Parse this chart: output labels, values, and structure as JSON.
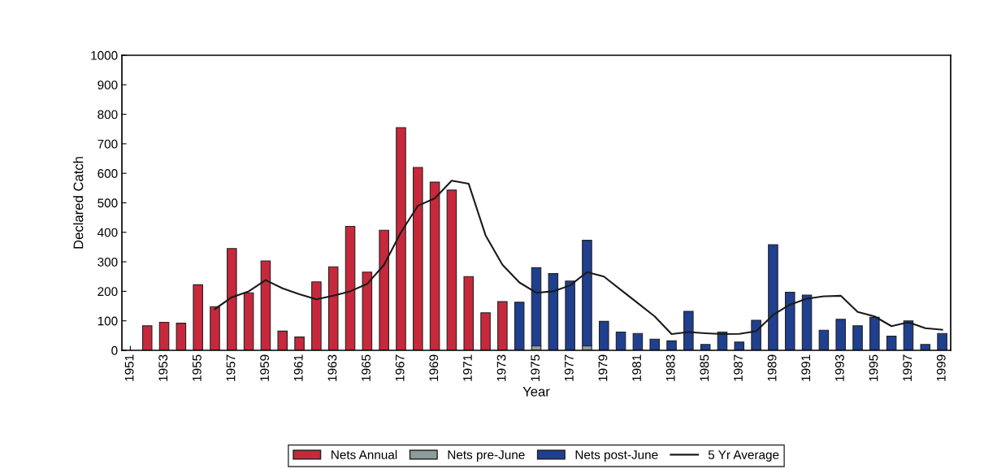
{
  "chart_data": {
    "type": "bar",
    "stacked": true,
    "xlabel": "Year",
    "ylabel": "Declared Catch",
    "categories": [
      "1951",
      null,
      "1953",
      null,
      "1955",
      null,
      "1957",
      null,
      "1959",
      null,
      "1961",
      null,
      "1963",
      null,
      "1965",
      null,
      "1967",
      null,
      "1969",
      null,
      "1971",
      null,
      "1973",
      null,
      "1975",
      null,
      "1977",
      null,
      "1979",
      null,
      "1981",
      null,
      "1983",
      null,
      "1985",
      null,
      "1987",
      null,
      "1989",
      null,
      "1991",
      null,
      "1993",
      null,
      "1995",
      null,
      "1997",
      null,
      "1999"
    ],
    "series": [
      {
        "name": "Nets Annual",
        "color": "#c8283c",
        "values": [
          null,
          83,
          95,
          92,
          222,
          148,
          345,
          195,
          303,
          65,
          45,
          232,
          283,
          420,
          265,
          407,
          755,
          620,
          570,
          543,
          250,
          127,
          165,
          null,
          null,
          null,
          null,
          null,
          null,
          null,
          null,
          null,
          null,
          null,
          null,
          null,
          null,
          null,
          null,
          null,
          null,
          null,
          null,
          null,
          null,
          null,
          null,
          null,
          null
        ]
      },
      {
        "name": "Nets pre-June",
        "color": "#8c9c9c",
        "values": [
          null,
          null,
          null,
          null,
          null,
          null,
          null,
          null,
          null,
          null,
          null,
          null,
          null,
          null,
          null,
          null,
          null,
          null,
          null,
          null,
          null,
          null,
          null,
          null,
          15,
          null,
          null,
          15,
          null,
          null,
          null,
          null,
          null,
          null,
          null,
          null,
          null,
          null,
          null,
          null,
          null,
          null,
          null,
          null,
          null,
          null,
          null,
          null,
          null
        ]
      },
      {
        "name": "Nets post-June",
        "color": "#1f3f8f",
        "values": [
          null,
          null,
          null,
          null,
          null,
          null,
          null,
          null,
          null,
          null,
          null,
          null,
          null,
          null,
          null,
          null,
          null,
          null,
          null,
          null,
          null,
          null,
          null,
          163,
          265,
          260,
          235,
          358,
          98,
          62,
          57,
          38,
          32,
          132,
          20,
          62,
          28,
          102,
          358,
          197,
          187,
          68,
          105,
          83,
          112,
          48,
          100,
          20,
          57
        ]
      },
      {
        "name": "5 Yr Average",
        "type": "line",
        "color": "#1a1a1a",
        "values": [
          null,
          null,
          null,
          null,
          null,
          140,
          180,
          200,
          238,
          210,
          190,
          173,
          185,
          200,
          225,
          290,
          400,
          490,
          515,
          575,
          565,
          390,
          290,
          230,
          195,
          200,
          220,
          265,
          250,
          205,
          160,
          115,
          55,
          62,
          58,
          55,
          56,
          65,
          120,
          155,
          175,
          183,
          185,
          130,
          115,
          82,
          95,
          75,
          70
        ]
      }
    ],
    "ylim": [
      0,
      1000
    ],
    "yticks": [
      0,
      100,
      200,
      300,
      400,
      500,
      600,
      700,
      800,
      900,
      1000
    ],
    "grid": false,
    "legend": "bottom"
  }
}
